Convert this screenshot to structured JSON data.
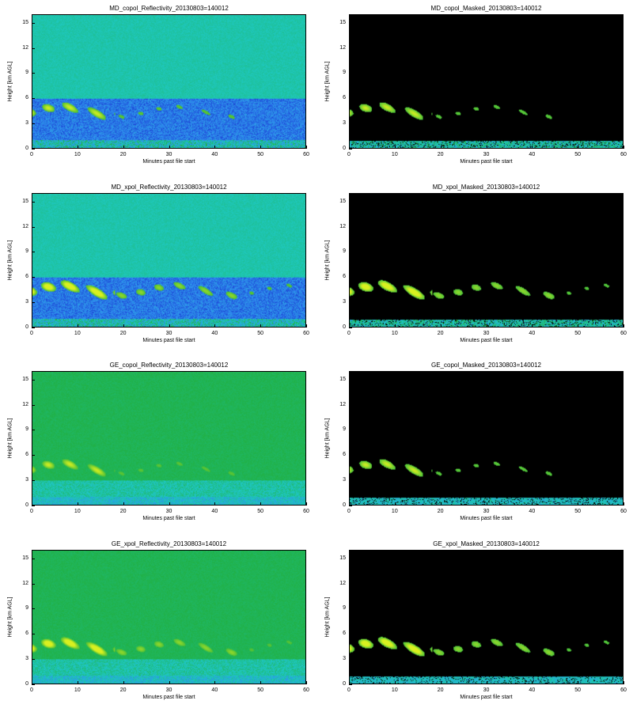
{
  "chart_data": [
    {
      "type": "heatmap",
      "kind": "raw",
      "instrument": "MD",
      "pol": "copol",
      "title": "MD_copol_Reflectivity_20130803=140012",
      "xlabel": "Minutes past file start",
      "ylabel": "Height [km AGL]",
      "xlim": [
        0,
        60
      ],
      "ylim": [
        0,
        16
      ],
      "xticks": [
        0,
        10,
        20,
        30,
        40,
        50,
        60
      ],
      "yticks": [
        0,
        3,
        6,
        9,
        12,
        15
      ]
    },
    {
      "type": "heatmap",
      "kind": "masked",
      "instrument": "MD",
      "pol": "copol",
      "title": "MD_copol_Masked_20130803=140012",
      "xlabel": "Minutes past file start",
      "ylabel": "Height [km AGL]",
      "xlim": [
        0,
        60
      ],
      "ylim": [
        0,
        16
      ],
      "xticks": [
        0,
        10,
        20,
        30,
        40,
        50,
        60
      ],
      "yticks": [
        0,
        3,
        6,
        9,
        12,
        15
      ]
    },
    {
      "type": "heatmap",
      "kind": "raw",
      "instrument": "MD",
      "pol": "xpol",
      "title": "MD_xpol_Reflectivity_20130803=140012",
      "xlabel": "Minutes past file start",
      "ylabel": "Height [km AGL]",
      "xlim": [
        0,
        60
      ],
      "ylim": [
        0,
        16
      ],
      "xticks": [
        0,
        10,
        20,
        30,
        40,
        50,
        60
      ],
      "yticks": [
        0,
        3,
        6,
        9,
        12,
        15
      ]
    },
    {
      "type": "heatmap",
      "kind": "masked",
      "instrument": "MD",
      "pol": "xpol",
      "title": "MD_xpol_Masked_20130803=140012",
      "xlabel": "Minutes past file start",
      "ylabel": "Height [km AGL]",
      "xlim": [
        0,
        60
      ],
      "ylim": [
        0,
        16
      ],
      "xticks": [
        0,
        10,
        20,
        30,
        40,
        50,
        60
      ],
      "yticks": [
        0,
        3,
        6,
        9,
        12,
        15
      ]
    },
    {
      "type": "heatmap",
      "kind": "raw",
      "instrument": "GE",
      "pol": "copol",
      "title": "GE_copol_Reflectivity_20130803=140012",
      "xlabel": "Minutes past file start",
      "ylabel": "Height [km AGL]",
      "xlim": [
        0,
        60
      ],
      "ylim": [
        0,
        16
      ],
      "xticks": [
        0,
        10,
        20,
        30,
        40,
        50,
        60
      ],
      "yticks": [
        0,
        3,
        6,
        9,
        12,
        15
      ]
    },
    {
      "type": "heatmap",
      "kind": "masked",
      "instrument": "GE",
      "pol": "copol",
      "title": "GE_copol_Masked_20130803=140012",
      "xlabel": "Minutes past file start",
      "ylabel": "Height [km AGL]",
      "xlim": [
        0,
        60
      ],
      "ylim": [
        0,
        16
      ],
      "xticks": [
        0,
        10,
        20,
        30,
        40,
        50,
        60
      ],
      "yticks": [
        0,
        3,
        6,
        9,
        12,
        15
      ]
    },
    {
      "type": "heatmap",
      "kind": "raw",
      "instrument": "GE",
      "pol": "xpol",
      "title": "GE_xpol_Reflectivity_20130803=140012",
      "xlabel": "Minutes past file start",
      "ylabel": "Height [km AGL]",
      "xlim": [
        0,
        60
      ],
      "ylim": [
        0,
        16
      ],
      "xticks": [
        0,
        10,
        20,
        30,
        40,
        50,
        60
      ],
      "yticks": [
        0,
        3,
        6,
        9,
        12,
        15
      ]
    },
    {
      "type": "heatmap",
      "kind": "masked",
      "instrument": "GE",
      "pol": "xpol",
      "title": "GE_xpol_Masked_20130803=140012",
      "xlabel": "Minutes past file start",
      "ylabel": "Height [km AGL]",
      "xlim": [
        0,
        60
      ],
      "ylim": [
        0,
        16
      ],
      "xticks": [
        0,
        10,
        20,
        30,
        40,
        50,
        60
      ],
      "yticks": [
        0,
        3,
        6,
        9,
        12,
        15
      ]
    }
  ],
  "colors": {
    "mask_background": "#000000",
    "low": "#1428c8",
    "mid_low": "#2f8cf0",
    "mid": "#1ec8c0",
    "mid_high": "#20b040",
    "high": "#d8f020"
  }
}
